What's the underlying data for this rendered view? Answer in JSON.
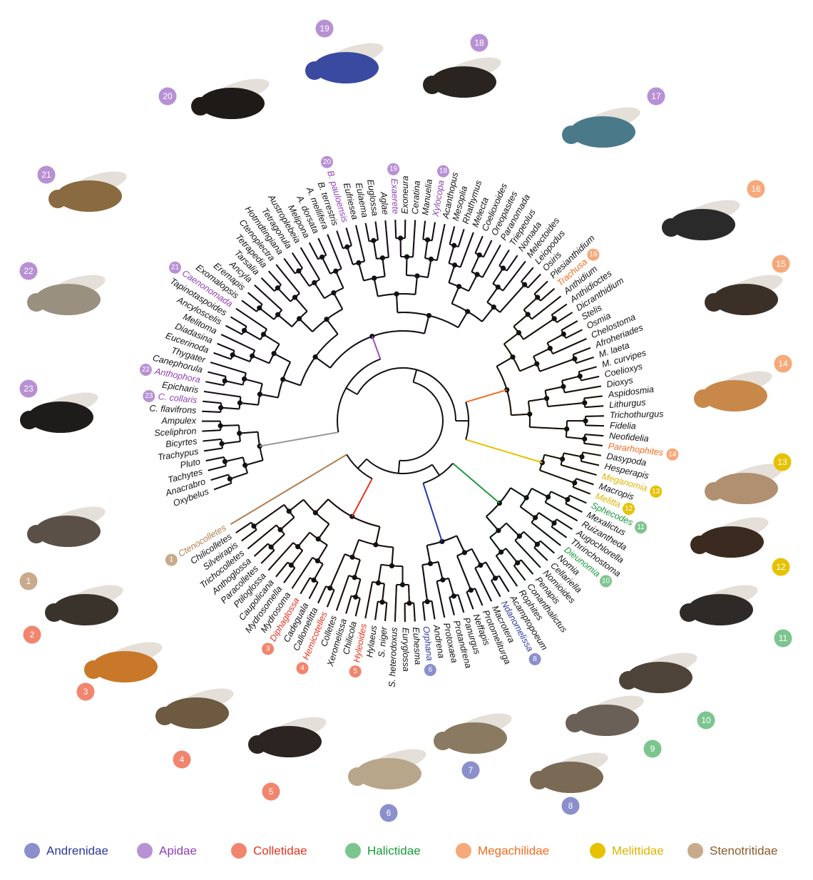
{
  "tree": {
    "clades": [
      {
        "branch_color": "#9a9a9a",
        "text_color": "#111111",
        "badge_color": "#aaaaaa",
        "tips": [
          "Oxybelus",
          "Anacrabro",
          "Tachytes",
          "Pluto",
          "Trachypus",
          "Bicyrtes",
          "Sceliphron",
          "Ampulex"
        ]
      },
      {
        "branch_color": "#9b4fc0",
        "text_color": "#8e3fb3",
        "badge_color": "#b890d4",
        "tips": [
          "C. flavifrons",
          {
            "label": "C. collaris",
            "badge": "23"
          },
          "Epicharis",
          {
            "label": "Anthophora",
            "badge": "22"
          },
          "Canephorula",
          "Thygater",
          "Eucerinoda",
          "Diadasina",
          "Melitoma",
          "Ancyloscelis",
          "Tapinotaspoides",
          {
            "label": "Caenonomada",
            "badge": "21"
          },
          "Exomalopsis",
          "Eremapis",
          "Ancyla",
          "Tarsalia",
          "Tetrapedia",
          "Ctenoplectra",
          "Hotmdtingiana",
          "Tetragonula",
          "Austroplebeia",
          "Melipona",
          "A. dorsata",
          "A. mellifera",
          "B. terrestris",
          {
            "label": "B. pauloensis",
            "badge": "20"
          },
          "Eufriesea",
          "Eulaema",
          "Euglossa",
          "Aglae",
          {
            "label": "Exaerete",
            "badge": "19"
          },
          "Exoneura",
          "Ceratina",
          "Manuelia",
          {
            "label": "Xylocopa",
            "badge": "18"
          },
          "Acanthopus",
          "Mesoplia",
          "Rhathymus",
          "Melecta",
          "Coelioxoides",
          "Oreopasites",
          "Paranomada",
          "Triepeolus",
          "Nomada",
          "Melectoides",
          "Leiopodus",
          "Osiris"
        ]
      },
      {
        "branch_color": "#f26b1d",
        "text_color": "#f26b1d",
        "badge_color": "#f6a97a",
        "tips": [
          "Plesianthidium",
          {
            "label": "Trachusa",
            "badge": "16"
          },
          "Anthidium",
          "Anthidioctes",
          "Dicranthidium",
          "Stelis",
          "Osmia",
          "Chelostoma",
          "Afroheriades",
          "M. laeta",
          "M. curvipes",
          "Coelioxys",
          "Dioxys",
          "Aspidosmia",
          "Lithurgus",
          "Trichothurgus",
          "Fidelia",
          "Neofidelia",
          {
            "label": "Pararhophites",
            "badge": "14"
          }
        ]
      },
      {
        "branch_color": "#e9c000",
        "text_color": "#e0b400",
        "badge_color": "#e6c200",
        "tips": [
          "Dasypoda",
          "Hesperapis",
          {
            "label": "Meganomia",
            "badge": "13"
          },
          "Macropis",
          {
            "label": "Melitta",
            "badge": "12"
          }
        ]
      },
      {
        "branch_color": "#1a9a3a",
        "text_color": "#169a3a",
        "badge_color": "#7dc58f",
        "tips": [
          {
            "label": "Sphecodes",
            "badge": "11"
          },
          "Mexalictus",
          "Ruizantheda",
          "Augochlorella",
          "Thrinchostoma",
          {
            "label": "Dieunomia",
            "badge": "10"
          },
          "Nomia",
          "Cellariella",
          "Nomioides",
          "Penapis",
          "Conanthalictus",
          "Rophites"
        ]
      },
      {
        "branch_color": "#1f3aa8",
        "text_color": "#2a3a9c",
        "badge_color": "#8b8fcc",
        "tips": [
          "Acamptopoeum",
          {
            "label": "Ndanomelissa",
            "badge": "8"
          },
          "Macrotera",
          "Protomeliturga",
          "Neffapis",
          "Panurgus",
          "Protandrena",
          "Protoxaea",
          "Andrena",
          {
            "label": "Orphana",
            "badge": "6"
          }
        ]
      },
      {
        "branch_color": "#e8321e",
        "text_color": "#e8321e",
        "badge_color": "#f2856d",
        "tips": [
          "Euhesma",
          "Euryglossa",
          "S. heterodoxus",
          "S. niger",
          "Hylaeus",
          {
            "label": "Hyleoides",
            "badge": "5"
          },
          "Chilicola",
          "Xeromelissa",
          "Colletes",
          {
            "label": "Hemicotelles",
            "badge": "4"
          },
          "Callomelitta",
          "Cadeguala",
          {
            "label": "Diphaglossa",
            "badge": "3"
          },
          "Mydrosoma",
          "Mydrosomella",
          "Caupolicana",
          "Ptiloglossa",
          "Paracolletes",
          "Anthoglossa",
          "Trichocolletes",
          "Silveirapis",
          "Chilicolletes"
        ]
      },
      {
        "branch_color": "#b08050",
        "text_color": "#b08050",
        "badge_color": "#c8ab8c",
        "tips": [
          {
            "label": "Ctenocolletes",
            "badge": "1"
          }
        ]
      }
    ]
  },
  "photos": [
    {
      "number": "1",
      "color": "#c8ab8c"
    },
    {
      "number": "2",
      "color": "#f2856d"
    },
    {
      "number": "3",
      "color": "#f2856d"
    },
    {
      "number": "4",
      "color": "#f2856d"
    },
    {
      "number": "5",
      "color": "#f2856d"
    },
    {
      "number": "6",
      "color": "#8b8fcc"
    },
    {
      "number": "7",
      "color": "#8b8fcc"
    },
    {
      "number": "8",
      "color": "#8b8fcc"
    },
    {
      "number": "9",
      "color": "#7dc58f"
    },
    {
      "number": "10",
      "color": "#7dc58f"
    },
    {
      "number": "11",
      "color": "#7dc58f"
    },
    {
      "number": "12",
      "color": "#e6c200"
    },
    {
      "number": "13",
      "color": "#e6c200"
    },
    {
      "number": "14",
      "color": "#f6a97a"
    },
    {
      "number": "15",
      "color": "#f6a97a"
    },
    {
      "number": "16",
      "color": "#f6a97a"
    },
    {
      "number": "17",
      "color": "#b890d4"
    },
    {
      "number": "18",
      "color": "#b890d4"
    },
    {
      "number": "19",
      "color": "#b890d4"
    },
    {
      "number": "20",
      "color": "#b890d4"
    },
    {
      "number": "21",
      "color": "#b890d4"
    },
    {
      "number": "22",
      "color": "#b890d4"
    },
    {
      "number": "23",
      "color": "#b890d4"
    }
  ],
  "legend": [
    {
      "name": "Andrenidae",
      "dot_color": "#8b8fcc",
      "text_color": "#2a3a9c"
    },
    {
      "name": "Apidae",
      "dot_color": "#b890d4",
      "text_color": "#8e3fb3"
    },
    {
      "name": "Colletidae",
      "dot_color": "#f2856d",
      "text_color": "#e8321e"
    },
    {
      "name": "Halictidae",
      "dot_color": "#7dc58f",
      "text_color": "#169a3a"
    },
    {
      "name": "Megachilidae",
      "dot_color": "#f6a97a",
      "text_color": "#f26b1d"
    },
    {
      "name": "Melittidae",
      "dot_color": "#e6c200",
      "text_color": "#e0b400"
    },
    {
      "name": "Stenotritidae",
      "dot_color": "#c8ab8c",
      "text_color": "#8a5a2b"
    }
  ]
}
